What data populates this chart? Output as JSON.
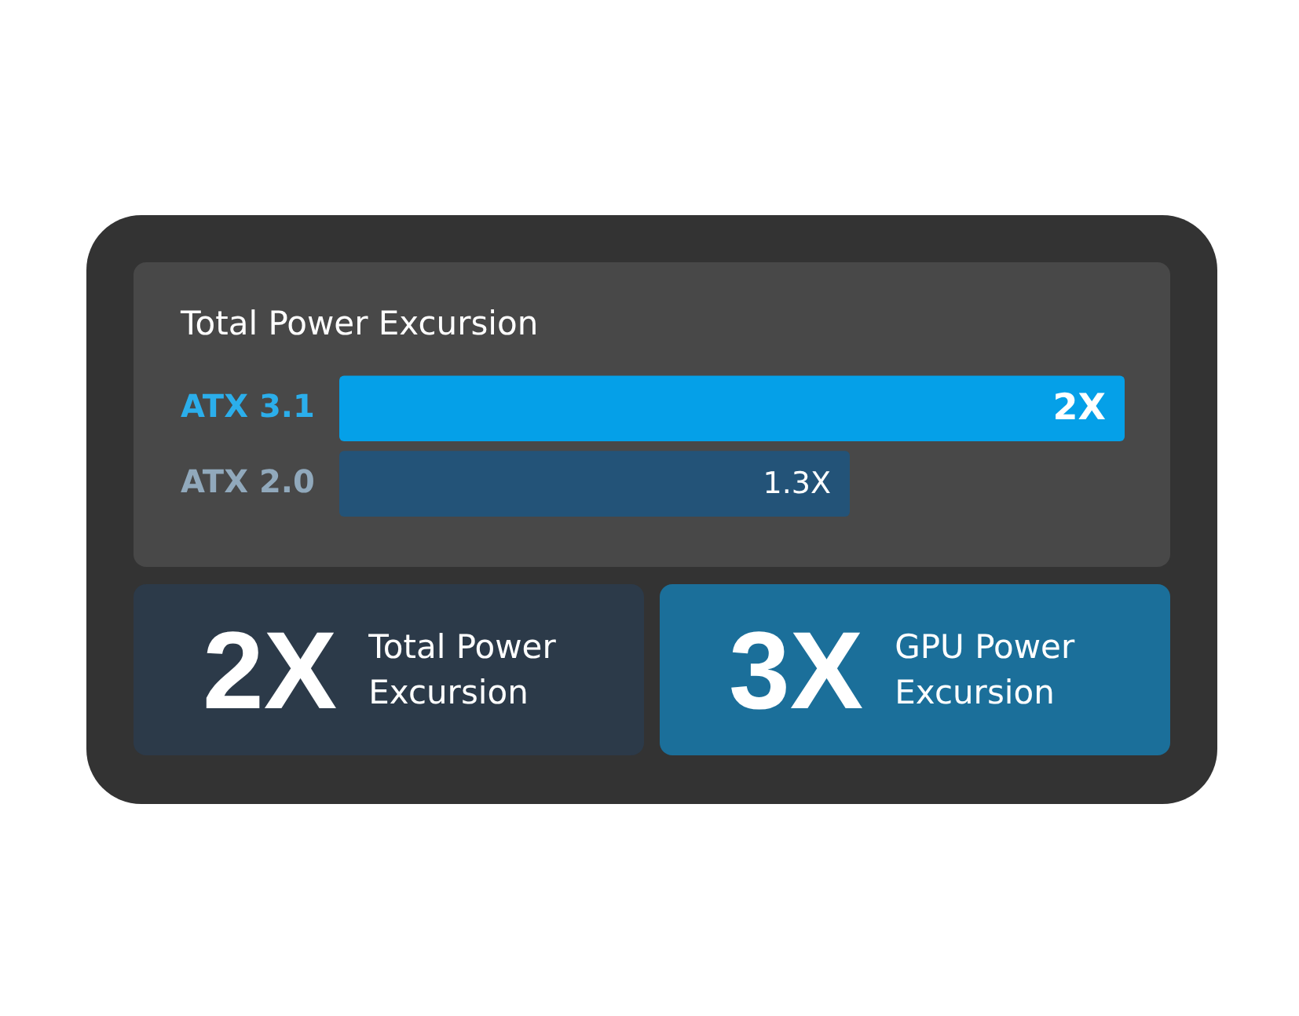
{
  "chart_data": {
    "type": "bar",
    "orientation": "horizontal",
    "title": "Total Power Excursion",
    "categories": [
      "ATX 3.1",
      "ATX 2.0"
    ],
    "values": [
      2,
      1.3
    ],
    "colors": [
      "#05a0e8",
      "#235378"
    ],
    "value_labels": [
      "2X",
      "1.3X"
    ],
    "tick_labels": "y",
    "annotations": [
      "2X",
      "Total Power Excursion",
      "3X",
      "GPU Power Excursion"
    ]
  }
}
